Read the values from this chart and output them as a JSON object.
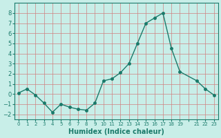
{
  "x_vals": [
    0,
    1,
    2,
    3,
    4,
    5,
    6,
    7,
    8,
    9,
    10,
    11,
    12,
    13,
    14,
    15,
    16,
    17,
    18,
    19,
    21,
    22,
    23
  ],
  "y_vals": [
    0.1,
    0.5,
    -0.1,
    -0.9,
    -1.8,
    -1.0,
    -1.3,
    -1.5,
    -1.6,
    -0.9,
    1.3,
    1.5,
    2.1,
    3.0,
    5.0,
    7.0,
    7.5,
    8.0,
    4.5,
    2.2,
    1.3,
    0.5,
    -0.1
  ],
  "line_color": "#1a7a6a",
  "marker_color": "#1a7a6a",
  "bg_color": "#c8eee8",
  "grid_color": "#d08080",
  "xlabel": "Humidex (Indice chaleur)",
  "ylim": [
    -2.5,
    9.0
  ],
  "xlim": [
    -0.5,
    23.5
  ],
  "yticks": [
    -2,
    -1,
    0,
    1,
    2,
    3,
    4,
    5,
    6,
    7,
    8
  ],
  "xtick_labels": [
    "0",
    "1",
    "2",
    "3",
    "4",
    "5",
    "6",
    "7",
    "8",
    "9",
    "10",
    "11",
    "12",
    "13",
    "14",
    "15",
    "16",
    "17",
    "18",
    "19",
    "",
    "21",
    "22",
    "23"
  ],
  "xtick_positions": [
    0,
    1,
    2,
    3,
    4,
    5,
    6,
    7,
    8,
    9,
    10,
    11,
    12,
    13,
    14,
    15,
    16,
    17,
    18,
    19,
    20,
    21,
    22,
    23
  ]
}
